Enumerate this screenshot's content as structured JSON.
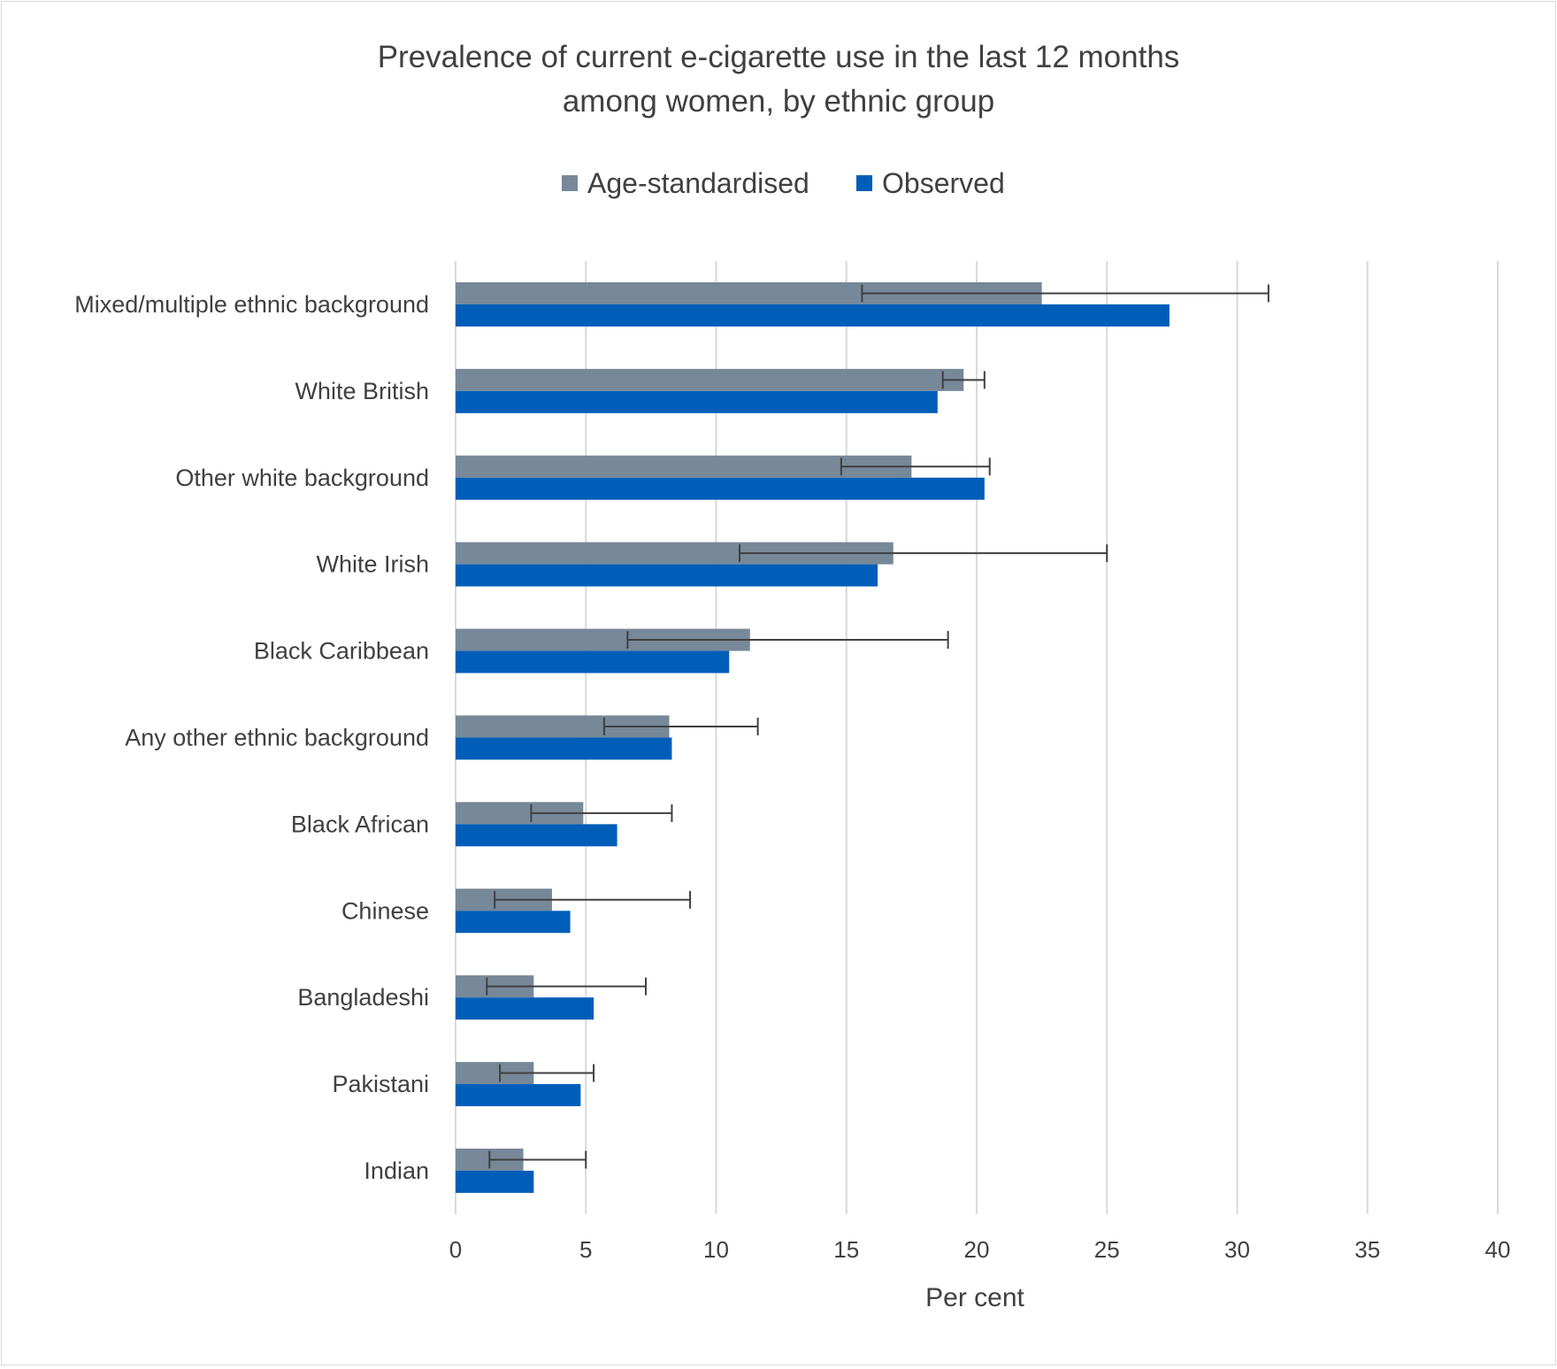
{
  "chart_data": {
    "type": "bar",
    "orientation": "horizontal",
    "title": "Prevalence of current e-cigarette use in the last 12 months among women, by ethnic group",
    "title_lines": [
      "Prevalence of current e-cigarette use in the last 12 months",
      "among women, by ethnic group"
    ],
    "xlabel": "Per cent",
    "ylabel": "",
    "xlim": [
      0,
      40
    ],
    "x_ticks": [
      0,
      5,
      10,
      15,
      20,
      25,
      30,
      35,
      40
    ],
    "grid": true,
    "legend_position": "top",
    "categories": [
      "Mixed/multiple ethnic background",
      "White British",
      "Other white background",
      "White Irish",
      "Black Caribbean",
      "Any other ethnic background",
      "Black African",
      "Chinese",
      "Bangladeshi",
      "Pakistani",
      "Indian"
    ],
    "series": [
      {
        "name": "Age-standardised",
        "color": "#778899",
        "values": [
          22.5,
          19.5,
          17.5,
          16.8,
          11.3,
          8.2,
          4.9,
          3.7,
          3.0,
          3.0,
          2.6
        ],
        "error_low": [
          15.6,
          18.7,
          14.8,
          10.9,
          6.6,
          5.7,
          2.9,
          1.5,
          1.2,
          1.7,
          1.3
        ],
        "error_high": [
          31.2,
          20.3,
          20.5,
          25.0,
          18.9,
          11.6,
          8.3,
          9.0,
          7.3,
          5.3,
          5.0
        ]
      },
      {
        "name": "Observed",
        "color": "#005EB8",
        "values": [
          27.4,
          18.5,
          20.3,
          16.2,
          10.5,
          8.3,
          6.2,
          4.4,
          5.3,
          4.8,
          3.0
        ]
      }
    ]
  }
}
